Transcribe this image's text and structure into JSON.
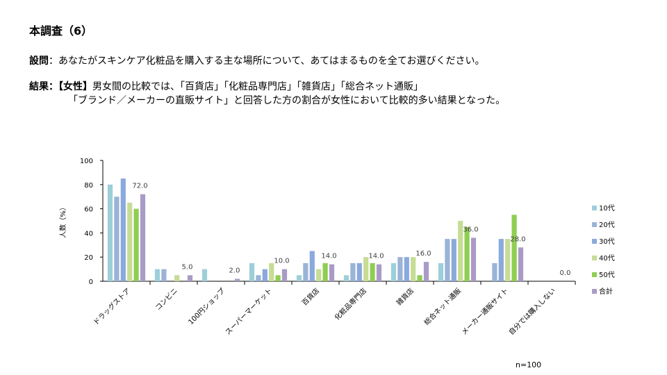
{
  "header": {
    "title": "本調査（6）",
    "question_label": "設問",
    "question_sep": "：",
    "question_text": "あなたがスキンケア化粧品を購入する主な場所について、あてはまるものを全てお選びください。",
    "result_label": "結果：",
    "result_tag": "【女性】",
    "result_line1": "男女間の比較では、「百貨店」「化粧品専門店」「雑貨店」「総合ネット通販」",
    "result_line2": "「ブランド／メーカーの直販サイト」と回答した方の割合が女性において比較的多い結果となった。"
  },
  "chart_data": {
    "type": "bar",
    "title": "",
    "xlabel": "",
    "ylabel": "人数（%）",
    "ylim": [
      0,
      100
    ],
    "yticks": [
      0,
      20,
      40,
      60,
      80,
      100
    ],
    "categories": [
      "ドラッグストア",
      "コンビニ",
      "100円ショップ",
      "スーパーマーケット",
      "百貨店",
      "化粧品専門店",
      "雑貨店",
      "総合ネット通販",
      "メーカー通販サイト",
      "自分では購入しない"
    ],
    "series": [
      {
        "name": "10代",
        "color": "#9ccfd9",
        "values": [
          80,
          10,
          10,
          15,
          5,
          5,
          15,
          15,
          0,
          0
        ]
      },
      {
        "name": "20代",
        "color": "#9ab3d6",
        "values": [
          70,
          10,
          0,
          5,
          15,
          15,
          20,
          35,
          15,
          0
        ]
      },
      {
        "name": "30代",
        "color": "#8aa9dc",
        "values": [
          85,
          0,
          0,
          10,
          25,
          15,
          20,
          35,
          35,
          0
        ]
      },
      {
        "name": "40代",
        "color": "#c7dc95",
        "values": [
          65,
          5,
          0,
          15,
          10,
          20,
          20,
          50,
          35,
          0
        ]
      },
      {
        "name": "50代",
        "color": "#8fce52",
        "values": [
          60,
          0,
          0,
          5,
          15,
          15,
          5,
          45,
          55,
          0
        ]
      },
      {
        "name": "合計",
        "color": "#a99bc6",
        "values": [
          72,
          5,
          2,
          10,
          14,
          14,
          16,
          36,
          28,
          0
        ]
      }
    ],
    "total_labels": [
      "72.0",
      "5.0",
      "2.0",
      "10.0",
      "14.0",
      "14.0",
      "16.0",
      "36.0",
      "28.0",
      "0.0"
    ],
    "legend_position": "right",
    "note": "n=100"
  }
}
